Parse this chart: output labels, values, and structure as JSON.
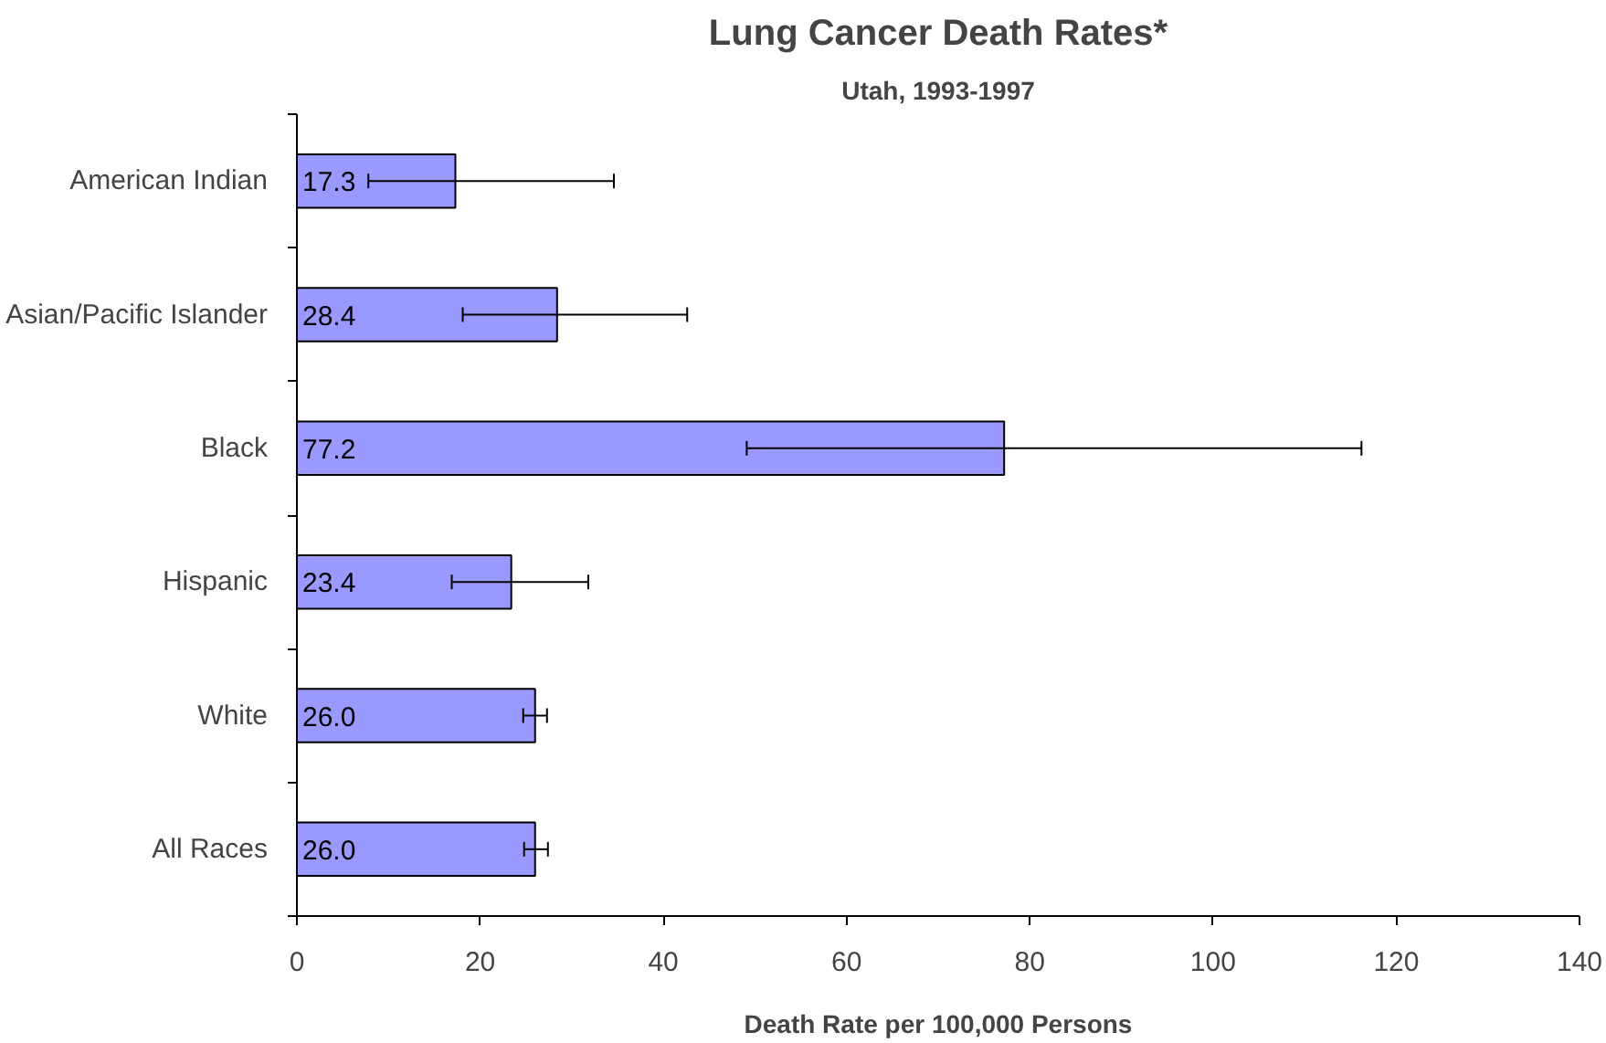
{
  "chart_data": {
    "type": "bar",
    "orientation": "horizontal",
    "title": "Lung Cancer Death Rates*",
    "subtitle": "Utah, 1993-1997",
    "xlabel": "Death Rate per 100,000 Persons",
    "categories": [
      "American Indian",
      "Asian/Pacific Islander",
      "Black",
      "Hispanic",
      "White",
      "All Races"
    ],
    "values": [
      17.3,
      28.4,
      77.2,
      23.4,
      26.0,
      26.0
    ],
    "value_labels": [
      "17.3",
      "28.4",
      "77.2",
      "23.4",
      "26.0",
      "26.0"
    ],
    "errors": [
      [
        7.8,
        34.6
      ],
      [
        18.1,
        42.6
      ],
      [
        49.1,
        116.2
      ],
      [
        16.9,
        31.8
      ],
      [
        24.7,
        27.3
      ],
      [
        24.8,
        27.4
      ]
    ],
    "color": "#9999ff",
    "xlim": [
      0,
      140
    ],
    "xticks": [
      0,
      20,
      40,
      60,
      80,
      100,
      120,
      140
    ],
    "grid": false
  }
}
